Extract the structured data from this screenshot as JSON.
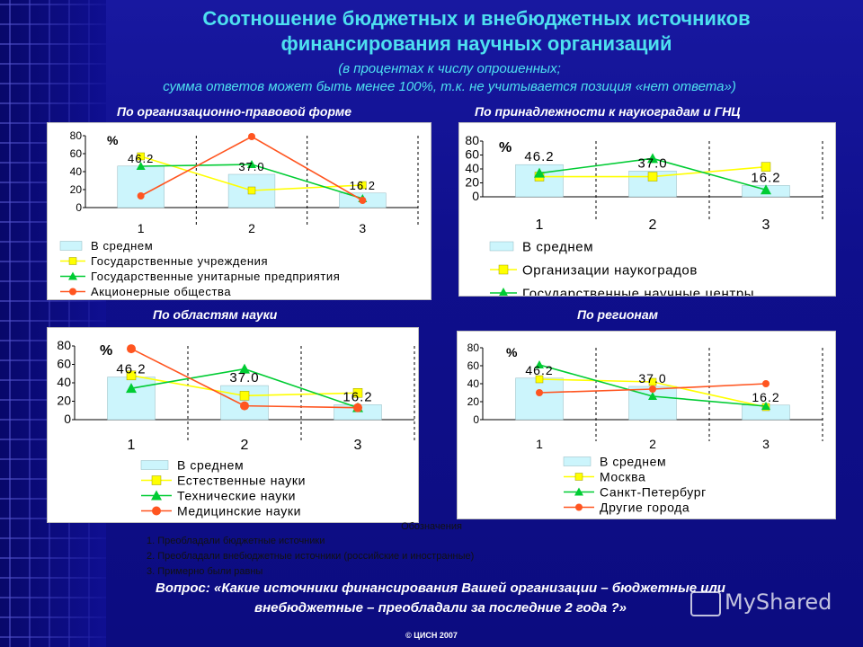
{
  "header": {
    "title_line1": "Соотношение бюджетных и внебюджетных источников",
    "title_line2": "финансирования научных организаций",
    "subtitle_line1": "(в процентах к числу опрошенных;",
    "subtitle_line2": "сумма ответов может быть менее 100%, т.к. не учитывается позиция «нет ответа»)"
  },
  "colors": {
    "bar_fill": "#ccf5fc",
    "yellow": "#ffff00",
    "green": "#00cc33",
    "red": "#ff5520",
    "title": "#4ee0f0"
  },
  "chart_data": [
    {
      "type": "bar",
      "title": "По организационно-правовой форме",
      "ylabel": "%",
      "ylim": [
        0,
        80
      ],
      "yticks": [
        0,
        20,
        40,
        60,
        80
      ],
      "categories": [
        "1",
        "2",
        "3"
      ],
      "bar_series": {
        "name": "В среднем",
        "values": [
          46.2,
          37.0,
          16.2
        ],
        "labels": [
          "46.2",
          "37.0",
          "16.2"
        ]
      },
      "series": [
        {
          "name": "Государственные учреждения",
          "marker": "square",
          "color": "yellow",
          "values": [
            57,
            19,
            25
          ]
        },
        {
          "name": "Государственные унитарные предприятия",
          "marker": "triangle",
          "color": "green",
          "values": [
            46,
            48,
            10
          ]
        },
        {
          "name": "Акционерные общества",
          "marker": "circle",
          "color": "red",
          "values": [
            13,
            79,
            8
          ]
        }
      ]
    },
    {
      "type": "bar",
      "title": "По принадлежности к наукоградам и ГНЦ",
      "ylabel": "%",
      "ylim": [
        0,
        80
      ],
      "yticks": [
        0,
        20,
        40,
        60,
        80
      ],
      "categories": [
        "1",
        "2",
        "3"
      ],
      "bar_series": {
        "name": "В среднем",
        "values": [
          46.2,
          37.0,
          16.2
        ],
        "labels": [
          "46.2",
          "37.0",
          "16.2"
        ]
      },
      "series": [
        {
          "name": "Организации наукоградов",
          "marker": "square",
          "color": "yellow",
          "values": [
            29,
            29,
            43
          ]
        },
        {
          "name": "Государственные научные центры",
          "marker": "triangle",
          "color": "green",
          "values": [
            34,
            55,
            10
          ]
        }
      ]
    },
    {
      "type": "bar",
      "title": "По областям науки",
      "ylabel": "%",
      "ylim": [
        0,
        80
      ],
      "yticks": [
        0,
        20,
        40,
        60,
        80
      ],
      "categories": [
        "1",
        "2",
        "3"
      ],
      "bar_series": {
        "name": "В среднем",
        "values": [
          46.2,
          37.0,
          16.2
        ],
        "labels": [
          "46.2",
          "37.0",
          "16.2"
        ]
      },
      "series": [
        {
          "name": "Естественные науки",
          "marker": "square",
          "color": "yellow",
          "values": [
            48,
            26,
            29
          ]
        },
        {
          "name": "Технические науки",
          "marker": "triangle",
          "color": "green",
          "values": [
            34,
            55,
            13
          ]
        },
        {
          "name": "Медицинские науки",
          "marker": "circle",
          "color": "red",
          "values": [
            77,
            15,
            13
          ]
        }
      ]
    },
    {
      "type": "bar",
      "title": "По регионам",
      "ylabel": "%",
      "ylim": [
        0,
        80
      ],
      "yticks": [
        0,
        20,
        40,
        60,
        80
      ],
      "categories": [
        "1",
        "2",
        "3"
      ],
      "bar_series": {
        "name": "В среднем",
        "values": [
          46.2,
          37.0,
          16.2
        ],
        "labels": [
          "46.2",
          "37.0",
          "16.2"
        ]
      },
      "series": [
        {
          "name": "Москва",
          "marker": "square",
          "color": "yellow",
          "values": [
            45,
            42,
            14
          ]
        },
        {
          "name": "Санкт-Петербург",
          "marker": "triangle",
          "color": "green",
          "values": [
            61,
            26,
            15
          ]
        },
        {
          "name": "Другие города",
          "marker": "circle",
          "color": "red",
          "values": [
            30,
            34,
            40
          ]
        }
      ]
    }
  ],
  "notes": {
    "heading": "Обозначения",
    "items": [
      "1. Преобладали бюджетные источники",
      "2. Преобладали внебюджетные источники (российские и иностранные)",
      "3. Примерно были равны"
    ]
  },
  "question": {
    "line1": "Вопрос: «Какие источники финансирования Вашей организации – бюджетные или",
    "line2": "внебюджетные – преобладали за последние 2 года ?»"
  },
  "footer": {
    "copyright": "© ЦИСН 2007",
    "watermark": "MyShared"
  }
}
